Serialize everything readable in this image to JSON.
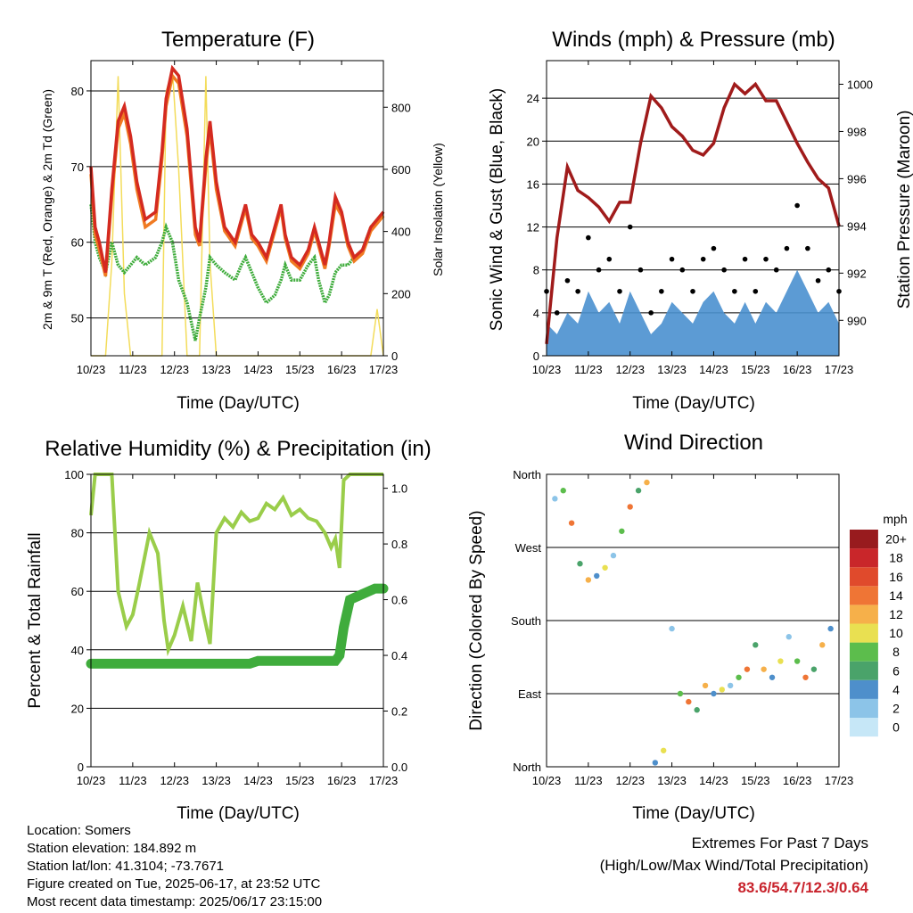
{
  "charts": {
    "temperature": {
      "title": "Temperature (F)",
      "xlabel": "Time (Day/UTC)",
      "ylabel_left": "2m & 9m T (Red, Orange) & 2m Td (Green)",
      "ylabel_right": "Solar Insolation (Yellow)"
    },
    "winds": {
      "title": "Winds (mph) & Pressure (mb)",
      "xlabel": "Time (Day/UTC)",
      "ylabel_left": "Sonic Wind & Gust (Blue, Black)",
      "ylabel_right": "Station Pressure (Maroon)"
    },
    "humidity": {
      "title": "Relative Humidity (%) & Precipitation (in)",
      "xlabel": "Time (Day/UTC)",
      "ylabel_left": "Percent & Total Rainfall"
    },
    "direction": {
      "title": "Wind Direction",
      "xlabel": "Time (Day/UTC)",
      "ylabel_left": "Direction (Colored By Speed)",
      "legend_title": "mph"
    }
  },
  "chart_data": [
    {
      "type": "line",
      "title": "Temperature (F)",
      "xlabel": "Time (Day/UTC)",
      "ylabel": "2m & 9m T (Red, Orange) & 2m Td (Green)",
      "y2label": "Solar Insolation (Yellow)",
      "x_ticks": [
        "10/23",
        "11/23",
        "12/23",
        "13/23",
        "14/23",
        "15/23",
        "16/23",
        "17/23"
      ],
      "ylim": [
        45,
        84
      ],
      "y_ticks": [
        50,
        60,
        70,
        80
      ],
      "y2lim": [
        0,
        950
      ],
      "y2_ticks": [
        0,
        200,
        400,
        600,
        800
      ],
      "grid": true,
      "colors": {
        "t2m": "#d42a20",
        "t9m": "#f07a22",
        "td": "#3fac3c",
        "solar": "#f3dc5a"
      },
      "x_day": [
        0.0,
        0.1,
        0.2,
        0.35,
        0.5,
        0.65,
        0.8,
        0.95,
        1.1,
        1.3,
        1.55,
        1.7,
        1.8,
        1.95,
        2.1,
        2.3,
        2.5,
        2.6,
        2.75,
        2.85,
        3.0,
        3.2,
        3.45,
        3.6,
        3.7,
        3.85,
        4.0,
        4.2,
        4.4,
        4.55,
        4.65,
        4.8,
        5.0,
        5.2,
        5.35,
        5.45,
        5.6,
        5.7,
        5.85,
        6.0,
        6.15,
        6.3,
        6.5,
        6.7,
        6.85,
        7.0
      ],
      "series": [
        {
          "name": "2m T",
          "values": [
            70,
            62,
            60,
            56,
            67,
            76,
            78,
            74,
            68,
            63,
            64,
            72,
            79,
            83,
            82,
            75,
            62,
            60,
            71,
            76,
            68,
            62,
            60,
            63,
            65,
            61,
            60,
            58,
            62,
            65,
            61,
            58,
            57,
            59,
            62,
            60,
            57,
            60,
            66,
            64,
            60,
            58,
            59,
            62,
            63,
            64
          ]
        },
        {
          "name": "9m T",
          "values": [
            69,
            61,
            59,
            55.5,
            66,
            75,
            77,
            73,
            67,
            62,
            63,
            71,
            78,
            82,
            81,
            74,
            61,
            59.5,
            70,
            75,
            67,
            61.5,
            59.5,
            62.5,
            64.5,
            60.5,
            59.5,
            57.5,
            61.5,
            64.5,
            60.5,
            57.5,
            56.5,
            58.5,
            61.5,
            59.5,
            56.5,
            59.5,
            65,
            63.5,
            59.5,
            57.5,
            58.5,
            61.5,
            62.5,
            63.5
          ]
        },
        {
          "name": "2m Td",
          "values": [
            65,
            60,
            58,
            56,
            60,
            57,
            56,
            57,
            58,
            57,
            58,
            60,
            62,
            60,
            55,
            52,
            47,
            50,
            54,
            58,
            57,
            56,
            55,
            57,
            58,
            56,
            54,
            52,
            53,
            55,
            57,
            55,
            55,
            57,
            58,
            55,
            52,
            53,
            56,
            57,
            57,
            58,
            59,
            62,
            63,
            64
          ]
        },
        {
          "name": "Solar",
          "values": [
            0,
            0,
            0,
            0,
            300,
            900,
            200,
            0,
            0,
            0,
            0,
            0,
            850,
            920,
            600,
            0,
            0,
            0,
            900,
            300,
            0,
            0,
            0,
            0,
            0,
            0,
            0,
            0,
            0,
            0,
            0,
            0,
            0,
            0,
            0,
            0,
            0,
            0,
            0,
            0,
            0,
            0,
            0,
            0,
            150,
            0
          ]
        }
      ]
    },
    {
      "type": "line",
      "title": "Winds (mph) & Pressure (mb)",
      "xlabel": "Time (Day/UTC)",
      "ylabel": "Sonic Wind & Gust (Blue, Black)",
      "y2label": "Station Pressure (Maroon)",
      "x_ticks": [
        "10/23",
        "11/23",
        "12/23",
        "13/23",
        "14/23",
        "15/23",
        "16/23",
        "17/23"
      ],
      "ylim": [
        0,
        27.5
      ],
      "y_ticks": [
        0,
        4,
        8,
        12,
        16,
        20,
        24
      ],
      "y2lim": [
        988.5,
        1001
      ],
      "y2_ticks": [
        990,
        992,
        994,
        996,
        998,
        1000
      ],
      "grid": true,
      "colors": {
        "wind": "#4a90cf",
        "gust": "#000000",
        "pressure": "#a01b1b"
      },
      "x_day": [
        0.0,
        0.25,
        0.5,
        0.75,
        1.0,
        1.25,
        1.5,
        1.75,
        2.0,
        2.25,
        2.5,
        2.75,
        3.0,
        3.25,
        3.5,
        3.75,
        4.0,
        4.25,
        4.5,
        4.75,
        5.0,
        5.25,
        5.5,
        5.75,
        6.0,
        6.25,
        6.5,
        6.75,
        7.0
      ],
      "series": [
        {
          "name": "Sonic Wind",
          "values": [
            3,
            2,
            4,
            3,
            6,
            4,
            5,
            3,
            6,
            4,
            2,
            3,
            5,
            4,
            3,
            5,
            6,
            4,
            3,
            5,
            3,
            5,
            4,
            6,
            8,
            6,
            4,
            5,
            3
          ]
        },
        {
          "name": "Gust",
          "values": [
            6,
            4,
            7,
            6,
            11,
            8,
            9,
            6,
            12,
            8,
            4,
            6,
            9,
            8,
            6,
            9,
            10,
            8,
            6,
            9,
            6,
            9,
            8,
            10,
            14,
            10,
            7,
            8,
            6
          ]
        },
        {
          "name": "Station Pressure",
          "values": [
            989.0,
            993.5,
            996.5,
            995.5,
            995.2,
            994.8,
            994.2,
            995.0,
            995.0,
            997.5,
            999.5,
            999.0,
            998.2,
            997.8,
            997.2,
            997.0,
            997.5,
            999.0,
            1000.0,
            999.6,
            1000.0,
            999.3,
            999.3,
            998.4,
            997.5,
            996.7,
            996.0,
            995.6,
            994.0
          ]
        }
      ]
    },
    {
      "type": "line",
      "title": "Relative Humidity (%) & Precipitation (in)",
      "xlabel": "Time (Day/UTC)",
      "ylabel": "Percent & Total Rainfall",
      "x_ticks": [
        "10/23",
        "11/23",
        "12/23",
        "13/23",
        "14/23",
        "15/23",
        "16/23",
        "17/23"
      ],
      "ylim": [
        0,
        100
      ],
      "y_ticks": [
        0,
        20,
        40,
        60,
        80,
        100
      ],
      "y2lim": [
        0,
        1.05
      ],
      "y2_ticks": [
        0.0,
        0.2,
        0.4,
        0.6,
        0.8,
        1.0
      ],
      "grid": true,
      "colors": {
        "rh": "#9acd4a",
        "precip": "#3fac3c"
      },
      "x_day": [
        0.0,
        0.1,
        0.3,
        0.5,
        0.65,
        0.85,
        1.0,
        1.15,
        1.4,
        1.6,
        1.75,
        1.85,
        2.0,
        2.2,
        2.4,
        2.55,
        2.7,
        2.85,
        3.0,
        3.2,
        3.4,
        3.6,
        3.8,
        4.0,
        4.2,
        4.4,
        4.6,
        4.8,
        5.0,
        5.2,
        5.4,
        5.6,
        5.75,
        5.85,
        5.95,
        6.05,
        6.2,
        6.5,
        6.8,
        7.0
      ],
      "series": [
        {
          "name": "Relative Humidity",
          "values": [
            86,
            100,
            100,
            100,
            60,
            48,
            52,
            62,
            80,
            73,
            50,
            40,
            45,
            55,
            43,
            63,
            52,
            42,
            80,
            85,
            82,
            87,
            84,
            85,
            90,
            88,
            92,
            86,
            88,
            85,
            84,
            80,
            75,
            78,
            68,
            98,
            100,
            100,
            100,
            100
          ]
        },
        {
          "name": "Total Rainfall",
          "values": [
            0.37,
            0.37,
            0.37,
            0.37,
            0.37,
            0.37,
            0.37,
            0.37,
            0.37,
            0.37,
            0.37,
            0.37,
            0.37,
            0.37,
            0.37,
            0.37,
            0.37,
            0.37,
            0.37,
            0.37,
            0.37,
            0.37,
            0.37,
            0.38,
            0.38,
            0.38,
            0.38,
            0.38,
            0.38,
            0.38,
            0.38,
            0.38,
            0.38,
            0.38,
            0.4,
            0.5,
            0.6,
            0.62,
            0.64,
            0.64
          ]
        }
      ]
    },
    {
      "type": "scatter",
      "title": "Wind Direction",
      "xlabel": "Time (Day/UTC)",
      "ylabel": "Direction (Colored By Speed)",
      "x_ticks": [
        "10/23",
        "11/23",
        "12/23",
        "13/23",
        "14/23",
        "15/23",
        "16/23",
        "17/23"
      ],
      "y_ticks": [
        "North",
        "East",
        "South",
        "West",
        "North"
      ],
      "ylim": [
        0,
        360
      ],
      "grid": true,
      "colorbar": {
        "title": "mph",
        "labels": [
          "0",
          "2",
          "4",
          "6",
          "8",
          "10",
          "12",
          "14",
          "16",
          "18",
          "20+"
        ],
        "colors": [
          "#c6e7f7",
          "#8cc4e8",
          "#4e8fcb",
          "#4aa36a",
          "#5cbd4c",
          "#e9e051",
          "#f6b04a",
          "#ef7535",
          "#e04a2c",
          "#c9262a",
          "#981b1e"
        ]
      },
      "x_day": [
        0.2,
        0.4,
        0.6,
        0.8,
        1.0,
        1.2,
        1.4,
        1.6,
        1.8,
        2.0,
        2.2,
        2.4,
        2.6,
        2.8,
        3.0,
        3.2,
        3.4,
        3.6,
        3.8,
        4.0,
        4.2,
        4.4,
        4.6,
        4.8,
        5.0,
        5.2,
        5.4,
        5.6,
        5.8,
        6.0,
        6.2,
        6.4,
        6.6,
        6.8
      ],
      "series": [
        {
          "name": "Direction",
          "values": [
            330,
            340,
            300,
            250,
            230,
            235,
            245,
            260,
            290,
            320,
            340,
            350,
            5,
            20,
            170,
            90,
            80,
            70,
            100,
            90,
            95,
            100,
            110,
            120,
            150,
            120,
            110,
            130,
            160,
            130,
            110,
            120,
            150,
            170
          ]
        }
      ]
    }
  ],
  "info": {
    "location": "Location: Somers",
    "elevation": "Station elevation: 184.892 m",
    "latlon": "Station lat/lon: 41.3104; -73.7671",
    "created": "Figure created on Tue, 2025-06-17, at 23:52 UTC",
    "timestamp": "Most recent data timestamp: 2025/06/17 23:15:00"
  },
  "extremes": {
    "title": "Extremes For Past 7 Days",
    "subtitle": "(High/Low/Max Wind/Total Precipitation)",
    "values": "83.6/54.7/12.3/0.64"
  }
}
